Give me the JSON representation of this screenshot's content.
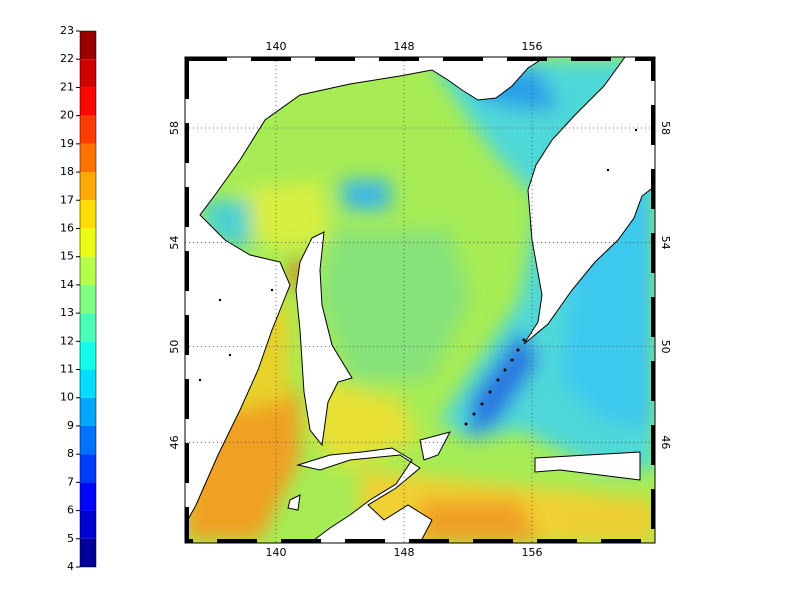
{
  "colorbar": {
    "ticks": [
      4,
      5,
      6,
      7,
      8,
      9,
      10,
      11,
      12,
      13,
      14,
      15,
      16,
      17,
      18,
      19,
      20,
      21,
      22,
      23
    ]
  },
  "map": {
    "lon_ticks": [
      140,
      148,
      156
    ],
    "lat_ticks": [
      58,
      54,
      50,
      46
    ]
  }
}
